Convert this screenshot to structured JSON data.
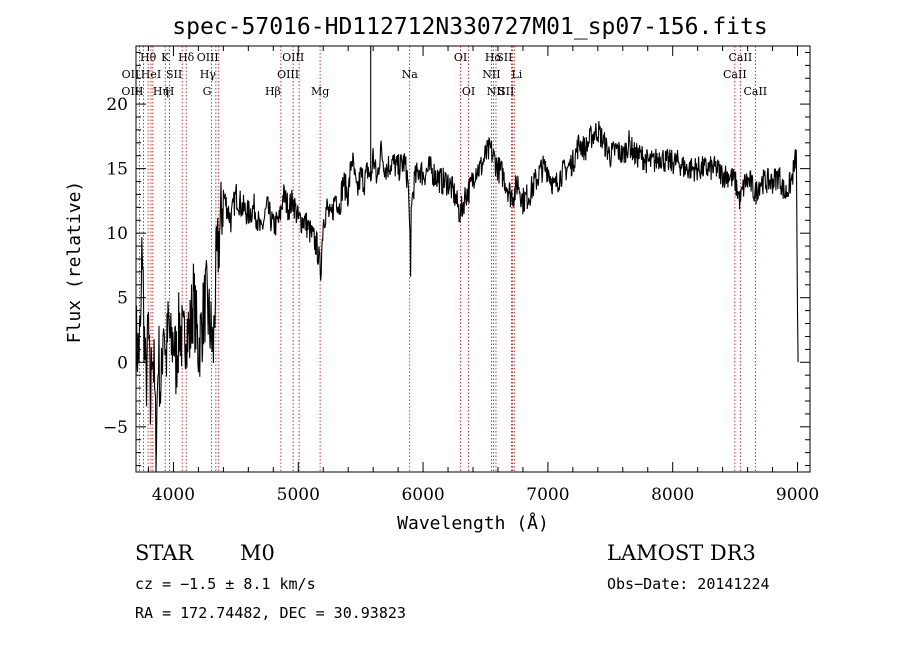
{
  "chart_data": {
    "type": "line",
    "title": "spec-57016-HD112712N330727M01_sp07-156.fits",
    "xlabel": "Wavelength (Å)",
    "ylabel": "Flux (relative)",
    "xlim": [
      3700,
      9100
    ],
    "ylim": [
      -8.5,
      24.5
    ],
    "xticks": [
      4000,
      5000,
      6000,
      7000,
      8000,
      9000
    ],
    "yticks": [
      -5,
      0,
      5,
      10,
      15,
      20
    ],
    "grid": false,
    "series": [
      {
        "values": [
          [
            3700,
            2
          ],
          [
            3720,
            0.5
          ],
          [
            3740,
            3
          ],
          [
            3750,
            10
          ],
          [
            3760,
            4
          ],
          [
            3780,
            -2
          ],
          [
            3800,
            3
          ],
          [
            3815,
            -4
          ],
          [
            3830,
            2
          ],
          [
            3845,
            -1
          ],
          [
            3860,
            -6.5
          ],
          [
            3880,
            1
          ],
          [
            3900,
            -3
          ],
          [
            3920,
            4
          ],
          [
            3940,
            0
          ],
          [
            3960,
            3
          ],
          [
            3980,
            1
          ],
          [
            4000,
            2
          ],
          [
            4020,
            0
          ],
          [
            4050,
            3
          ],
          [
            4080,
            1
          ],
          [
            4100,
            3
          ],
          [
            4130,
            2
          ],
          [
            4160,
            5
          ],
          [
            4200,
            1
          ],
          [
            4230,
            3
          ],
          [
            4260,
            5
          ],
          [
            4290,
            3
          ],
          [
            4320,
            1
          ],
          [
            4340,
            7
          ],
          [
            4370,
            10
          ],
          [
            4400,
            13
          ],
          [
            4430,
            12
          ],
          [
            4460,
            11
          ],
          [
            4500,
            13
          ],
          [
            4550,
            12
          ],
          [
            4600,
            11.5
          ],
          [
            4650,
            12
          ],
          [
            4700,
            10
          ],
          [
            4750,
            12
          ],
          [
            4800,
            10.5
          ],
          [
            4850,
            11
          ],
          [
            4880,
            13
          ],
          [
            4920,
            12
          ],
          [
            4960,
            12.5
          ],
          [
            5000,
            11
          ],
          [
            5050,
            11
          ],
          [
            5100,
            10
          ],
          [
            5150,
            9
          ],
          [
            5180,
            7
          ],
          [
            5200,
            11
          ],
          [
            5230,
            12
          ],
          [
            5260,
            11
          ],
          [
            5300,
            13
          ],
          [
            5330,
            12
          ],
          [
            5360,
            14
          ],
          [
            5400,
            13
          ],
          [
            5430,
            16
          ],
          [
            5470,
            13
          ],
          [
            5500,
            14.5
          ],
          [
            5530,
            14
          ],
          [
            5560,
            15
          ],
          [
            5580,
            14
          ],
          [
            5600,
            16
          ],
          [
            5630,
            14
          ],
          [
            5660,
            16.5
          ],
          [
            5700,
            15
          ],
          [
            5750,
            15.5
          ],
          [
            5800,
            15
          ],
          [
            5850,
            15.5
          ],
          [
            5880,
            14
          ],
          [
            5895,
            10
          ],
          [
            5900,
            6.5
          ],
          [
            5905,
            12
          ],
          [
            5930,
            14
          ],
          [
            5970,
            15
          ],
          [
            6000,
            14.5
          ],
          [
            6050,
            15
          ],
          [
            6100,
            14.5
          ],
          [
            6150,
            14
          ],
          [
            6200,
            14
          ],
          [
            6250,
            13
          ],
          [
            6280,
            12
          ],
          [
            6300,
            11.5
          ],
          [
            6340,
            13
          ],
          [
            6380,
            13.5
          ],
          [
            6420,
            15
          ],
          [
            6460,
            15
          ],
          [
            6500,
            16
          ],
          [
            6540,
            16.5
          ],
          [
            6560,
            16
          ],
          [
            6600,
            15
          ],
          [
            6640,
            14.5
          ],
          [
            6680,
            13.5
          ],
          [
            6700,
            13
          ],
          [
            6730,
            13
          ],
          [
            6760,
            14
          ],
          [
            6800,
            12.5
          ],
          [
            6850,
            13
          ],
          [
            6900,
            14
          ],
          [
            6950,
            15
          ],
          [
            7000,
            15
          ],
          [
            7050,
            13.5
          ],
          [
            7100,
            14.5
          ],
          [
            7150,
            15
          ],
          [
            7200,
            15.5
          ],
          [
            7250,
            17
          ],
          [
            7300,
            16.5
          ],
          [
            7350,
            17.5
          ],
          [
            7400,
            18
          ],
          [
            7450,
            17
          ],
          [
            7500,
            16
          ],
          [
            7550,
            16.5
          ],
          [
            7600,
            16
          ],
          [
            7650,
            17
          ],
          [
            7700,
            16
          ],
          [
            7750,
            16
          ],
          [
            7800,
            15.5
          ],
          [
            7850,
            15.5
          ],
          [
            7900,
            16
          ],
          [
            7950,
            15.5
          ],
          [
            8000,
            15.5
          ],
          [
            8050,
            15.5
          ],
          [
            8100,
            15
          ],
          [
            8150,
            15
          ],
          [
            8200,
            15
          ],
          [
            8250,
            15
          ],
          [
            8300,
            15
          ],
          [
            8350,
            15
          ],
          [
            8400,
            14.5
          ],
          [
            8450,
            14.5
          ],
          [
            8500,
            14
          ],
          [
            8540,
            12.5
          ],
          [
            8580,
            14
          ],
          [
            8620,
            14
          ],
          [
            8660,
            13
          ],
          [
            8700,
            14
          ],
          [
            8750,
            14
          ],
          [
            8800,
            14
          ],
          [
            8850,
            14.5
          ],
          [
            8900,
            13
          ],
          [
            8950,
            14
          ],
          [
            8990,
            16
          ],
          [
            9000,
            4
          ],
          [
            9005,
            0
          ]
        ]
      }
    ],
    "lines": [
      {
        "label": "Hθ",
        "x": 3797,
        "row": 0,
        "ha": "middle"
      },
      {
        "label": "OII",
        "x": 3727,
        "row": 1,
        "ha": "end"
      },
      {
        "label": "OIII",
        "x": 3760,
        "row": 2,
        "ha": "end"
      },
      {
        "label": "HeI",
        "x": 3820,
        "row": 1,
        "ha": "middle"
      },
      {
        "label": "Hη",
        "x": 3835,
        "row": 2,
        "ha": "start"
      },
      {
        "label": "K",
        "x": 3934,
        "row": 0,
        "ha": "middle"
      },
      {
        "label": "SII",
        "x": 4070,
        "row": 1,
        "ha": "end"
      },
      {
        "label": "H",
        "x": 3969,
        "row": 2,
        "ha": "middle"
      },
      {
        "label": "Hδ",
        "x": 4102,
        "row": 0,
        "ha": "middle"
      },
      {
        "label": "OIII",
        "x": 4363,
        "row": 0,
        "ha": "end"
      },
      {
        "label": "Hγ",
        "x": 4340,
        "row": 1,
        "ha": "end"
      },
      {
        "label": "G",
        "x": 4304,
        "row": 2,
        "ha": "end"
      },
      {
        "label": "OIII",
        "x": 4959,
        "row": 0,
        "ha": "middle"
      },
      {
        "label": "OIII",
        "x": 5007,
        "row": 1,
        "ha": "end"
      },
      {
        "label": "Hβ",
        "x": 4861,
        "row": 2,
        "ha": "end"
      },
      {
        "label": "Mg",
        "x": 5175,
        "row": 2,
        "ha": "middle"
      },
      {
        "label": "Na",
        "x": 5893,
        "row": 1,
        "ha": "middle"
      },
      {
        "label": "OI",
        "x": 6300,
        "row": 0,
        "ha": "middle"
      },
      {
        "label": "OI",
        "x": 6364,
        "row": 2,
        "ha": "middle"
      },
      {
        "label": "Hα",
        "x": 6563,
        "row": 0,
        "ha": "middle"
      },
      {
        "label": "SII",
        "x": 6716,
        "row": 0,
        "ha": "end"
      },
      {
        "label": "NII",
        "x": 6548,
        "row": 1,
        "ha": "middle"
      },
      {
        "label": "Li",
        "x": 6708,
        "row": 1,
        "ha": "start"
      },
      {
        "label": "NII",
        "x": 6584,
        "row": 2,
        "ha": "middle"
      },
      {
        "label": "SII",
        "x": 6731,
        "row": 2,
        "ha": "end"
      },
      {
        "label": "CaII",
        "x": 8542,
        "row": 0,
        "ha": "middle"
      },
      {
        "label": "CaII",
        "x": 8498,
        "row": 1,
        "ha": "middle"
      },
      {
        "label": "CaII",
        "x": 8662,
        "row": 2,
        "ha": "middle"
      }
    ]
  },
  "info": {
    "object_type": "STAR",
    "subclass": "M0",
    "survey": "LAMOST DR3",
    "cz": "cz = −1.5 ± 8.1 km/s",
    "obs_date": "Obs−Date: 20141224",
    "coords": "RA = 172.74482, DEC =  30.93823"
  },
  "colors": {
    "spectrum": "#000000",
    "line_markers": "#cc0000",
    "axes": "#000000"
  }
}
